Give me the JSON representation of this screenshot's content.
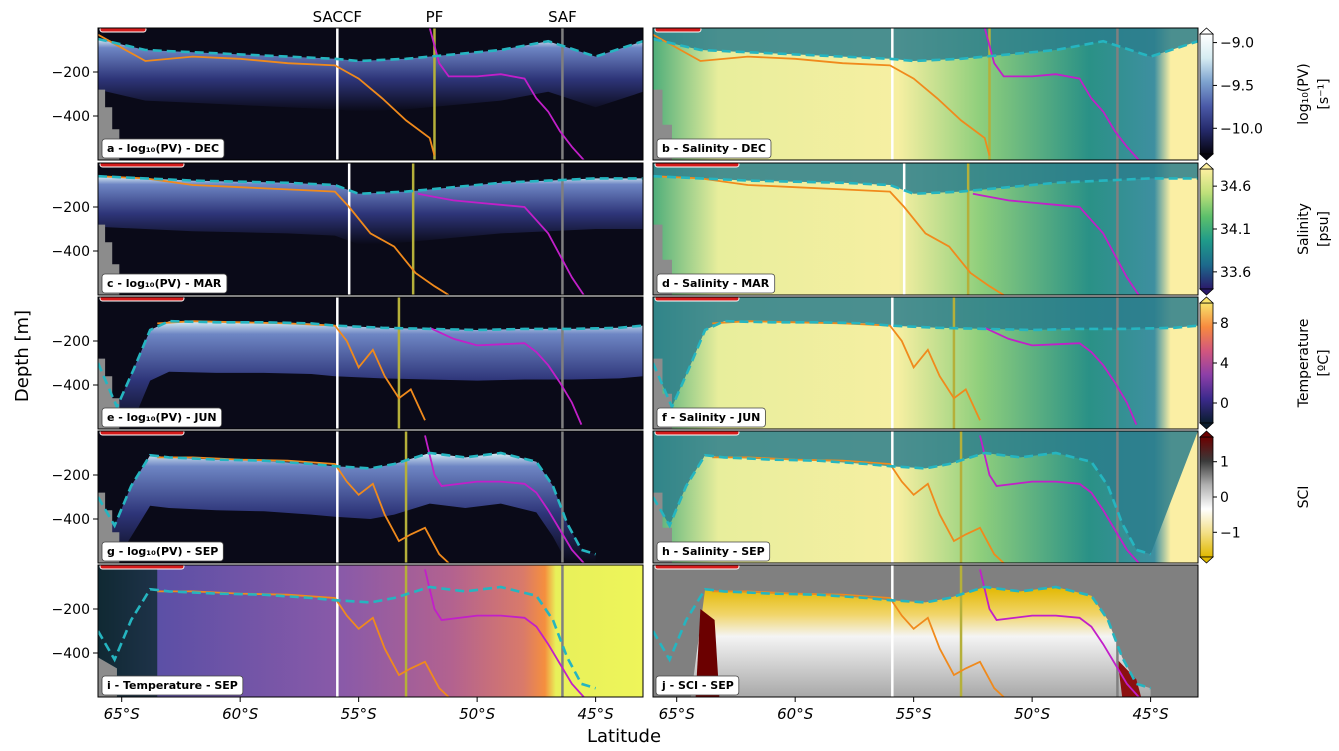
{
  "figure": {
    "ylabel": "Depth [m]",
    "xlabel": "Latitude",
    "front_labels": [
      "SACCF",
      "PF",
      "SAF"
    ]
  },
  "axis": {
    "x_ticks": [
      -65,
      -60,
      -55,
      -50,
      -45
    ],
    "x_tick_labels": [
      "65°S",
      "60°S",
      "55°S",
      "50°S",
      "45°S"
    ],
    "y_ticks": [
      -200,
      -400
    ],
    "y_tick_labels": [
      "−200",
      "−400"
    ],
    "xlim": [
      -66,
      -43
    ],
    "ylim": [
      -600,
      0
    ]
  },
  "colorbars": [
    {
      "name": "pv",
      "label": "log₁₀(PV)",
      "unit": "[s⁻¹]",
      "ticks": [
        -9.0,
        -9.5,
        -10.0
      ],
      "tick_labels": [
        "−9.0",
        "−9.5",
        "−10.0"
      ],
      "range": [
        -10.3,
        -8.9
      ],
      "colors": [
        "#06050f",
        "#252a6b",
        "#4b5aa8",
        "#7da2cf",
        "#d6ecf2",
        "#ffffff"
      ]
    },
    {
      "name": "salinity",
      "label": "Salinity",
      "unit": "[psu]",
      "ticks": [
        34.6,
        34.1,
        33.6
      ],
      "tick_labels": [
        "34.6",
        "34.1",
        "33.6"
      ],
      "range": [
        33.4,
        34.8
      ],
      "colors": [
        "#2b1a6b",
        "#1d6a8c",
        "#1f9a8a",
        "#5bbf6b",
        "#bfe07a",
        "#fdf0a0"
      ]
    },
    {
      "name": "temperature",
      "label": "Temperature",
      "unit": "[ºC]",
      "ticks": [
        8,
        4,
        0
      ],
      "tick_labels": [
        "8",
        "4",
        "0"
      ],
      "range": [
        -2,
        10
      ],
      "colors": [
        "#0a1d2e",
        "#3b2a8c",
        "#8c3fa8",
        "#d2567e",
        "#f78a3f",
        "#f7e46b"
      ]
    },
    {
      "name": "sci",
      "label": "SCI",
      "unit": "",
      "ticks": [
        1,
        0,
        -1
      ],
      "tick_labels": [
        "1",
        "0",
        "−1"
      ],
      "range": [
        -1.7,
        1.7
      ],
      "colors": [
        "#e0b800",
        "#f3df86",
        "#ffffff",
        "#b0b0b0",
        "#3a3a3a",
        "#6b0000"
      ]
    }
  ],
  "chart_data": {
    "type": "heatmap",
    "title": "",
    "panels": [
      {
        "id": "a",
        "label": "a - log₁₀(PV) - DEC",
        "variable": "pv",
        "month": "DEC",
        "fronts": {
          "SACCF": -55.9,
          "PF": -51.8,
          "SAF": -46.4
        }
      },
      {
        "id": "b",
        "label": "b - Salinity - DEC",
        "variable": "salinity",
        "month": "DEC",
        "fronts": {
          "SACCF": -55.9,
          "PF": -51.8,
          "SAF": -46.4
        }
      },
      {
        "id": "c",
        "label": "c - log₁₀(PV) - MAR",
        "variable": "pv",
        "month": "MAR",
        "fronts": {
          "SACCF": -55.4,
          "PF": -52.7,
          "SAF": -46.4
        }
      },
      {
        "id": "d",
        "label": "d - Salinity - MAR",
        "variable": "salinity",
        "month": "MAR",
        "fronts": {
          "SACCF": -55.4,
          "PF": -52.7,
          "SAF": -46.4
        }
      },
      {
        "id": "e",
        "label": "e - log₁₀(PV) - JUN",
        "variable": "pv",
        "month": "JUN",
        "fronts": {
          "SACCF": -55.9,
          "PF": -53.3,
          "SAF": -46.4
        }
      },
      {
        "id": "f",
        "label": "f - Salinity - JUN",
        "variable": "salinity",
        "month": "JUN",
        "fronts": {
          "SACCF": -55.9,
          "PF": -53.3,
          "SAF": -46.4
        }
      },
      {
        "id": "g",
        "label": "g - log₁₀(PV) - SEP",
        "variable": "pv",
        "month": "SEP",
        "fronts": {
          "SACCF": -55.9,
          "PF": -53.0,
          "SAF": -46.4
        }
      },
      {
        "id": "h",
        "label": "h - Salinity - SEP",
        "variable": "salinity",
        "month": "SEP",
        "fronts": {
          "SACCF": -55.9,
          "PF": -53.0,
          "SAF": -46.4
        }
      },
      {
        "id": "i",
        "label": "i - Temperature - SEP",
        "variable": "temperature",
        "month": "SEP",
        "fronts": {
          "SACCF": -55.9,
          "PF": -53.0,
          "SAF": -46.4
        }
      },
      {
        "id": "j",
        "label": "j - SCI - SEP",
        "variable": "sci",
        "month": "SEP",
        "fronts": {
          "SACCF": -55.9,
          "PF": -53.0,
          "SAF": -46.4
        }
      }
    ],
    "mixed_layer_depth": {
      "DEC": {
        "lat": [
          -66,
          -64,
          -62,
          -60,
          -58,
          -56,
          -55,
          -53,
          -51,
          -49,
          -47,
          -45,
          -43
        ],
        "depth": [
          -50,
          -100,
          -110,
          -120,
          -130,
          -140,
          -150,
          -140,
          -120,
          -100,
          -60,
          -130,
          -60
        ]
      },
      "MAR": {
        "lat": [
          -66,
          -64,
          -62,
          -60,
          -58,
          -56,
          -55,
          -53,
          -51,
          -49,
          -47,
          -45,
          -43
        ],
        "depth": [
          -60,
          -70,
          -80,
          -85,
          -90,
          -100,
          -140,
          -130,
          -110,
          -90,
          -80,
          -70,
          -70
        ]
      },
      "JUN": {
        "lat": [
          -66,
          -65.2,
          -64.5,
          -63.8,
          -63,
          -61,
          -59,
          -57,
          -56,
          -54,
          -52,
          -50,
          -48,
          -46,
          -44,
          -43
        ],
        "depth": [
          -300,
          -500,
          -330,
          -150,
          -110,
          -115,
          -115,
          -120,
          -130,
          -140,
          -145,
          -150,
          -145,
          -145,
          -140,
          -130
        ]
      },
      "SEP": {
        "lat": [
          -66,
          -65.3,
          -64.6,
          -63.8,
          -63,
          -61,
          -59,
          -57,
          -56,
          -54.5,
          -53.5,
          -52,
          -50.5,
          -49,
          -47.5,
          -46.8,
          -46.2,
          -45.6,
          -45
        ],
        "depth": [
          -300,
          -430,
          -250,
          -110,
          -120,
          -130,
          -135,
          -150,
          -160,
          -170,
          -150,
          -100,
          -120,
          -100,
          -140,
          -250,
          -420,
          -540,
          -560
        ]
      }
    },
    "isotherm_orange": {
      "DEC": {
        "lat": [
          -66,
          -64,
          -62,
          -60,
          -58,
          -56,
          -55,
          -54,
          -53,
          -52,
          -51.8
        ],
        "depth": [
          -30,
          -150,
          -130,
          -140,
          -160,
          -170,
          -230,
          -320,
          -420,
          -500,
          -580
        ]
      },
      "MAR": {
        "lat": [
          -66,
          -64,
          -62,
          -60,
          -58,
          -56,
          -55.4,
          -54.5,
          -53.5,
          -52.6,
          -51.8,
          -51.2
        ],
        "depth": [
          -60,
          -70,
          -100,
          -110,
          -120,
          -130,
          -200,
          -320,
          -380,
          -500,
          -560,
          -600
        ]
      },
      "JUN": {
        "lat": [
          -63.5,
          -62,
          -60,
          -58,
          -56,
          -55.5,
          -55,
          -54.4,
          -53.9,
          -53.3,
          -52.8,
          -52.2
        ],
        "depth": [
          -120,
          -110,
          -115,
          -120,
          -130,
          -200,
          -320,
          -240,
          -360,
          -460,
          -420,
          -560
        ]
      },
      "SEP": {
        "lat": [
          -63.5,
          -62,
          -60,
          -58,
          -56,
          -55.5,
          -55,
          -54.4,
          -53.9,
          -53.3,
          -52.8,
          -52.2,
          -51.6,
          -51.2
        ],
        "depth": [
          -120,
          -120,
          -130,
          -135,
          -150,
          -230,
          -290,
          -240,
          -380,
          -500,
          -470,
          -440,
          -560,
          -600
        ]
      }
    },
    "isotherm_magenta": {
      "DEC": {
        "lat": [
          -52,
          -51.6,
          -51.2,
          -50,
          -49,
          -48,
          -47.5,
          -47,
          -46.5,
          -46,
          -45.5
        ],
        "depth": [
          0,
          -160,
          -220,
          -220,
          -210,
          -230,
          -320,
          -380,
          -470,
          -540,
          -600
        ]
      },
      "MAR": {
        "lat": [
          -52.5,
          -52,
          -51,
          -50,
          -49,
          -48,
          -47.5,
          -47,
          -46.5,
          -46,
          -45.5
        ],
        "depth": [
          -140,
          -150,
          -170,
          -180,
          -190,
          -200,
          -260,
          -320,
          -420,
          -520,
          -600
        ]
      },
      "JUN": {
        "lat": [
          -52,
          -51,
          -50,
          -49,
          -48,
          -47.5,
          -47,
          -46.5,
          -46,
          -45.6
        ],
        "depth": [
          -140,
          -190,
          -220,
          -215,
          -210,
          -250,
          -310,
          -390,
          -480,
          -580
        ]
      },
      "SEP": {
        "lat": [
          -52.2,
          -51.8,
          -51.5,
          -50,
          -49,
          -48,
          -47.5,
          -47,
          -46.5,
          -46,
          -45.5
        ],
        "depth": [
          -20,
          -200,
          -250,
          -230,
          -230,
          -240,
          -280,
          -360,
          -450,
          -540,
          -600
        ]
      }
    }
  }
}
